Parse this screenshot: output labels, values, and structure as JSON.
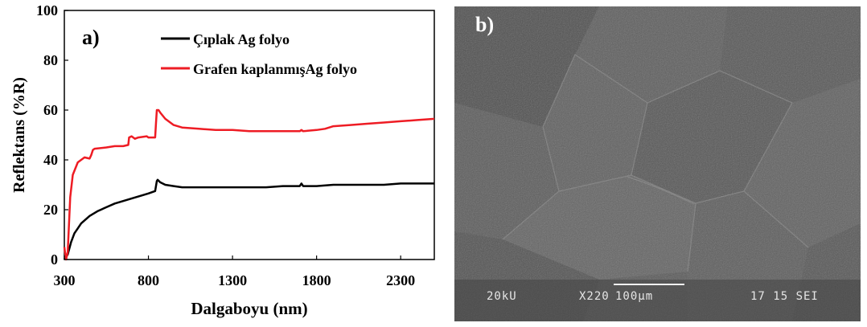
{
  "chart_data": {
    "type": "line",
    "panel_label": "a)",
    "xlabel": "Dalgaboyu (nm)",
    "ylabel": "Reflektans (%R)",
    "xlim": [
      300,
      2500
    ],
    "ylim": [
      0,
      100
    ],
    "xticks": [
      300,
      800,
      1300,
      1800,
      2300
    ],
    "yticks": [
      0,
      20,
      40,
      60,
      80,
      100
    ],
    "grid": false,
    "legend_position": "top-right",
    "series": [
      {
        "name": "Çıplak Ag folyo",
        "color": "#000000",
        "x": [
          300,
          320,
          340,
          360,
          380,
          400,
          450,
          500,
          550,
          600,
          650,
          700,
          750,
          800,
          840,
          850,
          855,
          870,
          900,
          950,
          1000,
          1100,
          1200,
          1300,
          1400,
          1500,
          1600,
          1700,
          1710,
          1720,
          1800,
          1900,
          2000,
          2100,
          2200,
          2300,
          2400,
          2500
        ],
        "y": [
          0,
          2,
          7,
          10.5,
          12.5,
          14.5,
          17.5,
          19.5,
          21,
          22.5,
          23.5,
          24.5,
          25.5,
          26.5,
          27.5,
          31.5,
          32,
          31,
          30,
          29.5,
          29,
          29,
          29,
          29,
          29,
          29,
          29.5,
          29.5,
          30.5,
          29.5,
          29.5,
          30,
          30,
          30,
          30,
          30.5,
          30.5,
          30.5
        ]
      },
      {
        "name": "Grafen kaplanmışAg folyo",
        "color": "#ee1c24",
        "x": [
          300,
          310,
          320,
          335,
          350,
          380,
          420,
          450,
          460,
          470,
          480,
          550,
          600,
          650,
          680,
          685,
          700,
          720,
          740,
          790,
          800,
          840,
          845,
          850,
          860,
          870,
          900,
          950,
          1000,
          1100,
          1200,
          1300,
          1400,
          1500,
          1600,
          1700,
          1710,
          1720,
          1800,
          1850,
          1900,
          2000,
          2100,
          2200,
          2300,
          2400,
          2500
        ],
        "y": [
          5,
          0,
          3,
          25,
          34,
          39,
          41,
          40.5,
          42,
          44,
          44.5,
          45,
          45.5,
          45.5,
          46,
          49,
          49.5,
          48.5,
          49,
          49.5,
          49,
          49,
          55,
          60,
          60,
          59,
          56.5,
          54,
          53,
          52.5,
          52,
          52,
          51.5,
          51.5,
          51.5,
          51.5,
          52,
          51.5,
          52,
          52.5,
          53.5,
          54,
          54.5,
          55,
          55.5,
          56,
          56.5
        ]
      }
    ]
  },
  "sem_image": {
    "panel_label": "b)",
    "voltage": "20kU",
    "magnification": "X220",
    "scale_bar": "100μm",
    "code": "17 15 SEI"
  }
}
